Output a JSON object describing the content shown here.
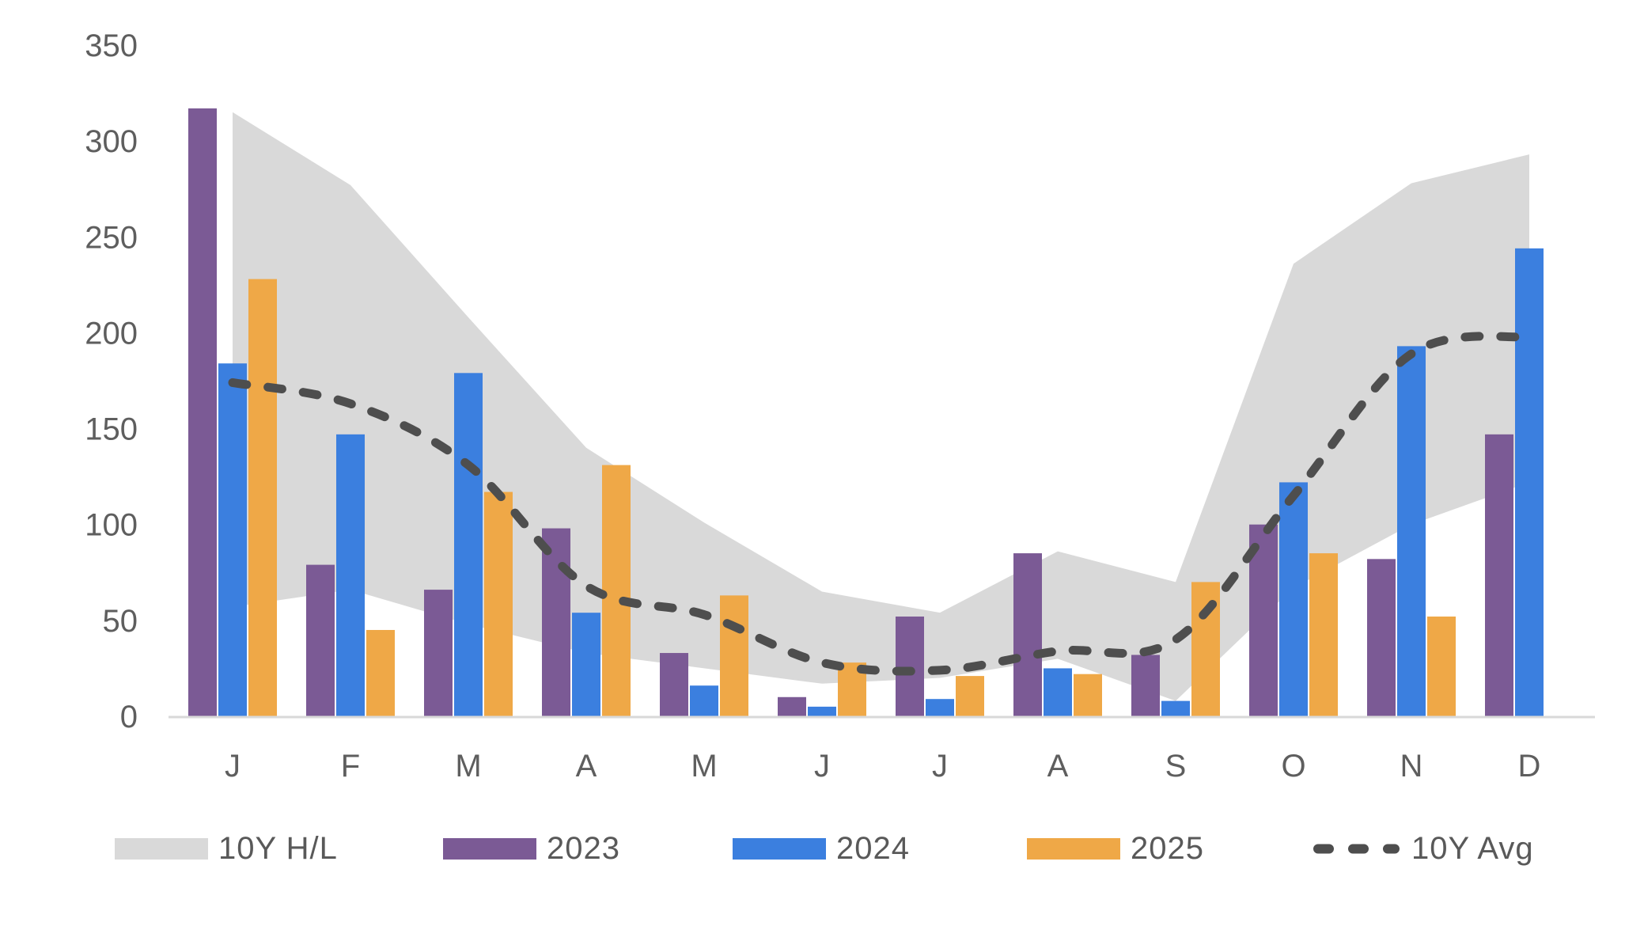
{
  "chart_data": {
    "type": "combo",
    "title": "",
    "categories": [
      "J",
      "F",
      "M",
      "A",
      "M",
      "J",
      "J",
      "A",
      "S",
      "O",
      "N",
      "D"
    ],
    "y_axis": {
      "min": 0,
      "max": 350,
      "tick_step": 50,
      "tick_labels": [
        "0",
        "50",
        "100",
        "150",
        "200",
        "250",
        "300",
        "350"
      ]
    },
    "grid": false,
    "legend_position": "bottom",
    "band": {
      "name": "10Y H/L",
      "color": "#D9D9D9",
      "high": [
        315,
        277,
        208,
        140,
        101,
        65,
        54,
        86,
        70,
        236,
        278,
        293
      ],
      "low": [
        57,
        66,
        48,
        33,
        25,
        17,
        20,
        30,
        8,
        67,
        100,
        122
      ]
    },
    "series": [
      {
        "name": "2023",
        "type": "bar",
        "color": "#7B5A95",
        "values": [
          317,
          79,
          66,
          98,
          33,
          10,
          52,
          85,
          32,
          100,
          82,
          147
        ]
      },
      {
        "name": "2024",
        "type": "bar",
        "color": "#3B7FDF",
        "values": [
          184,
          147,
          179,
          54,
          16,
          5,
          9,
          25,
          8,
          122,
          193,
          244
        ]
      },
      {
        "name": "2025",
        "type": "bar",
        "color": "#EFA847",
        "values": [
          228,
          45,
          117,
          131,
          63,
          28,
          21,
          22,
          70,
          85,
          52,
          null
        ]
      },
      {
        "name": "10Y Avg",
        "type": "line",
        "dashed": true,
        "color": "#4E4E4E",
        "values": [
          174,
          163,
          131,
          68,
          53,
          28,
          24,
          34,
          40,
          115,
          189,
          198
        ]
      }
    ],
    "colors": {
      "axis_text": "#5E5E5E",
      "baseline": "#D9D9D9",
      "background": "#FFFFFF"
    }
  }
}
